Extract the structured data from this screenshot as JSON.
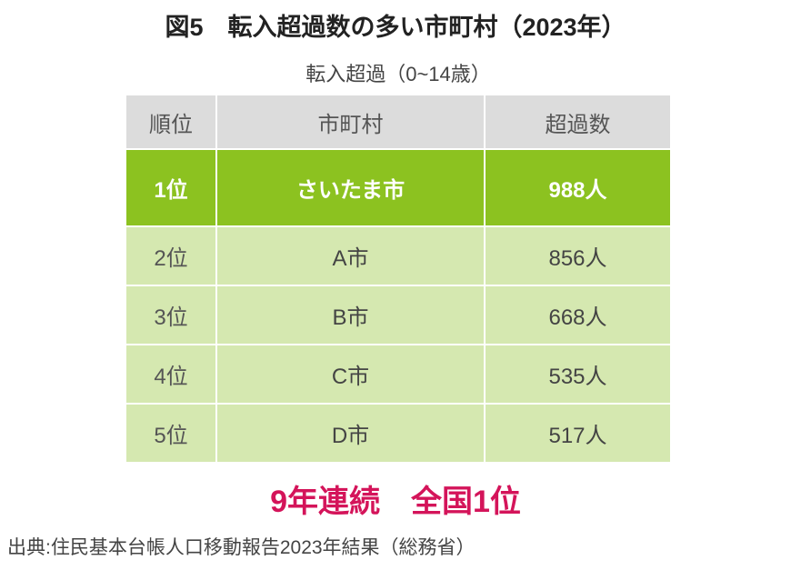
{
  "title": "図5　転入超過数の多い市町村（2023年）",
  "subtitle": "転入超過（0~14歳）",
  "table": {
    "headers": [
      "順位",
      "市町村",
      "超過数"
    ],
    "rows": [
      [
        "1位",
        "さいたま市",
        "988人"
      ],
      [
        "2位",
        "A市",
        "856人"
      ],
      [
        "3位",
        "B市",
        "668人"
      ],
      [
        "4位",
        "C市",
        "535人"
      ],
      [
        "5位",
        "D市",
        "517人"
      ]
    ]
  },
  "slogan": "9年連続　全国1位",
  "source": "出典:住民基本台帳人口移動報告2023年結果（総務省）",
  "colors": {
    "header": "#dcdcdc",
    "highlight": "#8cc220",
    "row": "#d5e8b0",
    "slogan": "#d4145a"
  }
}
